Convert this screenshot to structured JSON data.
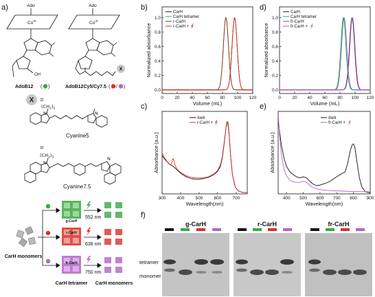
{
  "panel_labels": {
    "a": "a)",
    "b": "b)",
    "c": "c)",
    "d": "d)",
    "e": "e)",
    "f": "f)"
  },
  "panel_a": {
    "ado": "Ado",
    "co": "Co",
    "co_sup": "III",
    "oh": "OH",
    "ado_b12": "AdoB12",
    "ado_b12_cy": "AdoB12Cy5/Cy7.5",
    "x": "X",
    "equals": "=",
    "chain": "(CH",
    "chain_sub": "2",
    "chain_end": ")",
    "chain_n": "5",
    "n_plus": "N",
    "n_plain": "N",
    "cyanine5": "Cyanine5",
    "cyanine75": "Cyanine7.5",
    "carh_monomers": "CarH monomers",
    "g_carh": "g-CarH",
    "r_carh": "r-CarH",
    "fr_carh": "fr-CarH",
    "nm552": "552 nm",
    "nm638": "638 nm",
    "nm750": "750 nm",
    "carh_tetramer": "CarH tetramer",
    "carh_monomers_out": "CarH monomers",
    "colors": {
      "green": "#3aa845",
      "red": "#d9302c",
      "purple": "#b066c8",
      "cyan5": "#e0503e",
      "cyan75": "#a070c0"
    }
  },
  "panel_f": {
    "titles": [
      "g-CarH",
      "r-CarH",
      "fr-CarH"
    ],
    "tetramer": "tetramer",
    "monomer": "monomer",
    "lane_colors": [
      "#111111",
      "#3aa845",
      "#d9302c",
      "#b066c8"
    ]
  },
  "chart_data": [
    {
      "panel": "b",
      "type": "line",
      "xlabel": "Volume (mL)",
      "ylabel": "Normalized absorbance",
      "xlim": [
        0,
        120
      ],
      "ylim": [
        -0.05,
        1.15
      ],
      "xticks": [
        0,
        20,
        40,
        60,
        80,
        100,
        120
      ],
      "yticks": [
        0.0,
        0.2,
        0.4,
        0.6,
        0.8,
        1.0
      ],
      "legend": [
        "CarH",
        "CarH tetramer",
        "r-CarH",
        "r-CarH +"
      ],
      "legend_position": "top-left",
      "series": [
        {
          "name": "CarH",
          "color": "#111111",
          "peak": 96,
          "width": 3.4
        },
        {
          "name": "CarH tetramer",
          "color": "#3aa845",
          "peak": 84.5,
          "width": 3.4
        },
        {
          "name": "r-CarH",
          "color": "#8a3020",
          "peak": 84.5,
          "width": 3.4
        },
        {
          "name": "r-CarH +",
          "color": "#e0301c",
          "peak": 96,
          "width": 3.4
        }
      ]
    },
    {
      "panel": "d",
      "type": "line",
      "xlabel": "Volume (mL)",
      "ylabel": "Normalized absorbance",
      "xlim": [
        0,
        120
      ],
      "ylim": [
        -0.05,
        1.15
      ],
      "xticks": [
        0,
        20,
        40,
        60,
        80,
        100,
        120
      ],
      "yticks": [
        0.0,
        0.2,
        0.4,
        0.6,
        0.8,
        1.0
      ],
      "legend": [
        "CarH",
        "CarH tetramer",
        "fr-CarH",
        "fr-CarH +"
      ],
      "legend_position": "top-left",
      "series": [
        {
          "name": "CarH",
          "color": "#111111",
          "peak": 96,
          "width": 3.4
        },
        {
          "name": "CarH tetramer",
          "color": "#3aa845",
          "peak": 84.5,
          "width": 3.4
        },
        {
          "name": "fr-CarH",
          "color": "#5a60c8",
          "peak": 85.5,
          "width": 3.4
        },
        {
          "name": "fr-CarH +",
          "color": "#c050c8",
          "peak": 96.5,
          "width": 3.4
        }
      ]
    },
    {
      "panel": "c",
      "type": "line",
      "xlabel": "Wavelength(nm)",
      "ylabel": "Absorbance (a.u.)",
      "xlim": [
        300,
        760
      ],
      "ylim": [
        0,
        0.3
      ],
      "xticks": [
        300,
        400,
        500,
        600,
        700
      ],
      "legend": [
        "dark",
        "r-CarH +"
      ],
      "legend_position": "top-center",
      "series": [
        {
          "name": "dark",
          "color": "#111111",
          "points": [
            [
              300,
              0.14
            ],
            [
              310,
              0.13
            ],
            [
              320,
              0.122
            ],
            [
              340,
              0.108
            ],
            [
              360,
              0.1
            ],
            [
              380,
              0.088
            ],
            [
              400,
              0.075
            ],
            [
              430,
              0.062
            ],
            [
              460,
              0.055
            ],
            [
              490,
              0.053
            ],
            [
              520,
              0.055
            ],
            [
              550,
              0.06
            ],
            [
              580,
              0.07
            ],
            [
              600,
              0.082
            ],
            [
              615,
              0.1
            ],
            [
              625,
              0.13
            ],
            [
              635,
              0.18
            ],
            [
              645,
              0.24
            ],
            [
              650,
              0.262
            ],
            [
              656,
              0.26
            ],
            [
              662,
              0.22
            ],
            [
              670,
              0.14
            ],
            [
              680,
              0.07
            ],
            [
              695,
              0.025
            ],
            [
              710,
              0.012
            ],
            [
              730,
              0.006
            ],
            [
              760,
              0.004
            ]
          ]
        },
        {
          "name": "r-CarH +",
          "color": "#d9302c",
          "points": [
            [
              300,
              0.15
            ],
            [
              310,
              0.135
            ],
            [
              320,
              0.125
            ],
            [
              335,
              0.11
            ],
            [
              345,
              0.105
            ],
            [
              352,
              0.112
            ],
            [
              358,
              0.128
            ],
            [
              362,
              0.126
            ],
            [
              368,
              0.108
            ],
            [
              380,
              0.09
            ],
            [
              400,
              0.078
            ],
            [
              430,
              0.066
            ],
            [
              460,
              0.06
            ],
            [
              490,
              0.058
            ],
            [
              520,
              0.058
            ],
            [
              550,
              0.062
            ],
            [
              580,
              0.072
            ],
            [
              600,
              0.085
            ],
            [
              615,
              0.105
            ],
            [
              625,
              0.135
            ],
            [
              635,
              0.185
            ],
            [
              645,
              0.238
            ],
            [
              650,
              0.255
            ],
            [
              656,
              0.252
            ],
            [
              662,
              0.215
            ],
            [
              670,
              0.138
            ],
            [
              680,
              0.07
            ],
            [
              695,
              0.025
            ],
            [
              710,
              0.012
            ],
            [
              730,
              0.006
            ],
            [
              760,
              0.004
            ]
          ]
        }
      ]
    },
    {
      "panel": "e",
      "type": "line",
      "xlabel": "Wavelength(nm)",
      "ylabel": "Absorbance (a.u.)",
      "xlim": [
        350,
        900
      ],
      "ylim": [
        0,
        0.3
      ],
      "xticks": [
        400,
        500,
        600,
        700,
        800,
        900
      ],
      "legend": [
        "dark",
        "fr-CarH +"
      ],
      "legend_position": "top-right",
      "series": [
        {
          "name": "dark",
          "color": "#111111",
          "points": [
            [
              352,
              0.26
            ],
            [
              360,
              0.22
            ],
            [
              370,
              0.175
            ],
            [
              385,
              0.13
            ],
            [
              400,
              0.1
            ],
            [
              420,
              0.08
            ],
            [
              440,
              0.07
            ],
            [
              460,
              0.062
            ],
            [
              480,
              0.058
            ],
            [
              500,
              0.062
            ],
            [
              520,
              0.058
            ],
            [
              540,
              0.045
            ],
            [
              560,
              0.035
            ],
            [
              580,
              0.03
            ],
            [
              600,
              0.032
            ],
            [
              620,
              0.036
            ],
            [
              640,
              0.04
            ],
            [
              660,
              0.046
            ],
            [
              690,
              0.058
            ],
            [
              715,
              0.068
            ],
            [
              735,
              0.075
            ],
            [
              750,
              0.08
            ],
            [
              765,
              0.11
            ],
            [
              780,
              0.155
            ],
            [
              792,
              0.178
            ],
            [
              800,
              0.182
            ],
            [
              808,
              0.17
            ],
            [
              820,
              0.12
            ],
            [
              835,
              0.06
            ],
            [
              850,
              0.025
            ],
            [
              870,
              0.008
            ],
            [
              900,
              0.003
            ]
          ]
        },
        {
          "name": "fr-CarH +",
          "color": "#b066c8",
          "points": [
            [
              352,
              0.275
            ],
            [
              360,
              0.2
            ],
            [
              370,
              0.14
            ],
            [
              385,
              0.09
            ],
            [
              400,
              0.065
            ],
            [
              420,
              0.05
            ],
            [
              440,
              0.044
            ],
            [
              460,
              0.042
            ],
            [
              480,
              0.042
            ],
            [
              500,
              0.046
            ],
            [
              515,
              0.044
            ],
            [
              530,
              0.036
            ],
            [
              550,
              0.026
            ],
            [
              580,
              0.018
            ],
            [
              620,
              0.014
            ],
            [
              660,
              0.012
            ],
            [
              700,
              0.011
            ],
            [
              740,
              0.01
            ],
            [
              780,
              0.009
            ],
            [
              820,
              0.009
            ],
            [
              860,
              0.008
            ],
            [
              900,
              0.008
            ]
          ]
        }
      ]
    }
  ]
}
